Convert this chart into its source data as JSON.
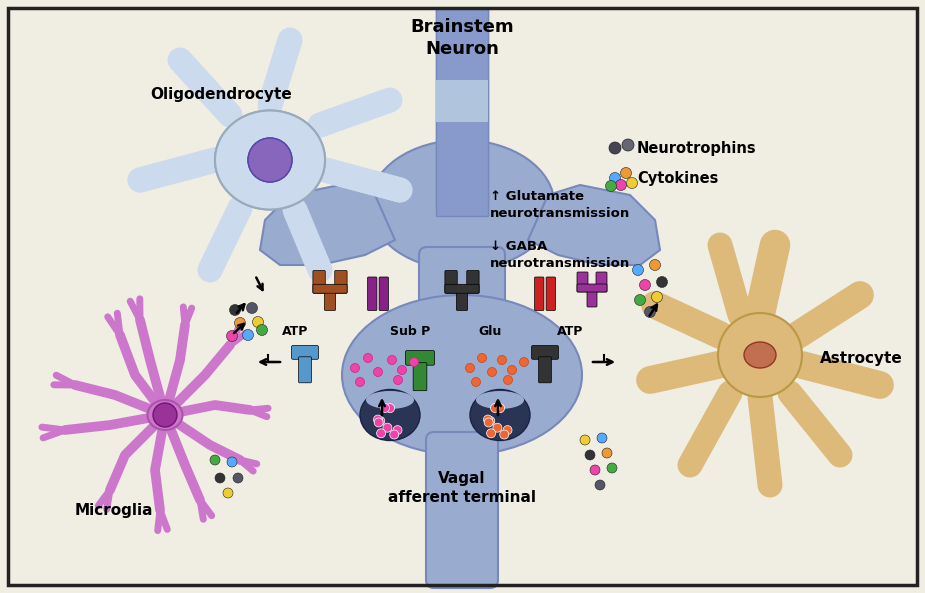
{
  "bg_color": "#f0ede3",
  "border_color": "#222222",
  "title": "Brainstem\nNeuron",
  "vagal_text": "Vagal\nafferent terminal",
  "oligo_label": "Oligodendrocyte",
  "micro_label": "Microglia",
  "astro_label": "Astrocyte",
  "neuro_label": "Neurotrophins",
  "cyto_label": "Cytokines",
  "atp_left": "ATP",
  "atp_right": "ATP",
  "subp_label": "Sub P",
  "glu_label": "Glu",
  "glut_text": "↑ Glutamate\nneurotransmission",
  "gaba_text": "↓ GABA\nneurotransmission",
  "neuron_col_color": "#8899cc",
  "neuron_band_color": "#b0c4de",
  "synapse_color": "#9aabd0",
  "synapse_edge": "#7788bb",
  "oligo_body": "#ccdaee",
  "oligo_nucleus": "#8866bb",
  "micro_color": "#cc77cc",
  "micro_nucleus": "#993399",
  "astro_color": "#ddb97a",
  "astro_nucleus": "#c07050",
  "receptor_brown": "#a05020",
  "receptor_purple": "#882288",
  "receptor_purple2": "#993399",
  "receptor_black": "#333333",
  "receptor_red": "#cc2222",
  "receptor_atp_blue": "#5599cc",
  "receptor_glu_green": "#338833",
  "vesicle_color": "#334466",
  "dot_pink": "#ee44aa",
  "dot_orange": "#ee6633",
  "neuro_dot1": "#444444",
  "neuro_dot2": "#555566",
  "cyto_pink": "#ee44aa",
  "cyto_blue": "#55aaff",
  "cyto_orange": "#ee8833",
  "cyto_yellow": "#eecc33",
  "cyto_green": "#44aa44"
}
